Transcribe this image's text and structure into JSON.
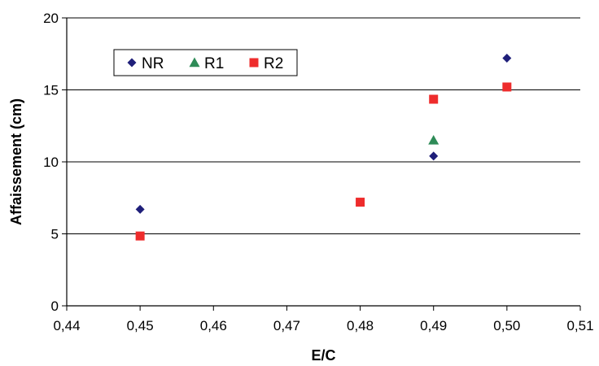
{
  "chart_data": {
    "type": "scatter",
    "xlabel": "E/C",
    "ylabel": "Affaissement (cm)",
    "xlim": [
      0.44,
      0.51
    ],
    "ylim": [
      0,
      20
    ],
    "x_ticks": [
      "0,44",
      "0,45",
      "0,46",
      "0,47",
      "0,48",
      "0,49",
      "0,50",
      "0,51"
    ],
    "y_ticks": [
      "0",
      "5",
      "10",
      "15",
      "20"
    ],
    "grid": "horizontal major lines",
    "legend_position": "top-left",
    "series": [
      {
        "name": "NR",
        "marker": "diamond",
        "color": "#1F1F7A",
        "points": [
          {
            "x": 0.45,
            "y": 6.7
          },
          {
            "x": 0.49,
            "y": 10.4
          },
          {
            "x": 0.5,
            "y": 17.2
          }
        ]
      },
      {
        "name": "R1",
        "marker": "triangle",
        "color": "#2E8B57",
        "points": [
          {
            "x": 0.49,
            "y": 11.5
          }
        ]
      },
      {
        "name": "R2",
        "marker": "square",
        "color": "#EE2C2C",
        "points": [
          {
            "x": 0.45,
            "y": 4.85
          },
          {
            "x": 0.48,
            "y": 7.2
          },
          {
            "x": 0.49,
            "y": 14.35
          },
          {
            "x": 0.5,
            "y": 15.2
          }
        ]
      }
    ]
  }
}
